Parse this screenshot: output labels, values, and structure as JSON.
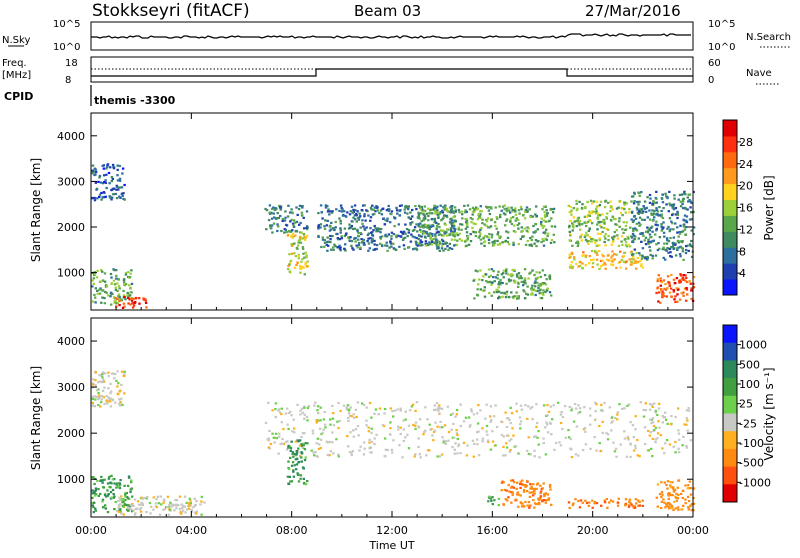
{
  "header": {
    "station": "Stokkseyri (fitACF)",
    "beam": "Beam 03",
    "date": "27/Mar/2016"
  },
  "strip_panels": {
    "nsky": {
      "left_label": "N.Sky",
      "left_ticks": [
        "10^5",
        "10^0"
      ],
      "right_ticks": [
        "10^5",
        "10^0"
      ],
      "right_label": "N.Search"
    },
    "freq": {
      "left_label_1": "Freq.",
      "left_label_2": "[MHz]",
      "left_ticks": [
        "18",
        "8"
      ],
      "right_ticks": [
        "60",
        "0"
      ],
      "right_label": "Nave"
    },
    "cpid": {
      "label": "CPID",
      "program": "themis -3300"
    }
  },
  "chart_data": [
    {
      "type": "heatmap",
      "title": "",
      "xlabel": "",
      "ylabel": "Slant Range [km]",
      "x_range_hours": [
        0,
        24
      ],
      "ylim_km": [
        180,
        4500
      ],
      "x_ticks": [
        "00:00",
        "04:00",
        "08:00",
        "12:00",
        "16:00",
        "20:00",
        "00:00"
      ],
      "y_ticks": [
        1000,
        2000,
        3000,
        4000
      ],
      "colorbar": {
        "label": "Power [dB]",
        "ticks": [
          "4",
          "8",
          "12",
          "16",
          "20",
          "24",
          "28"
        ],
        "colors": [
          "#0a14ff",
          "#1f3fb0",
          "#2c6e9e",
          "#3f8a5e",
          "#5aa64b",
          "#9bd03a",
          "#ffd21f",
          "#ff9a1f",
          "#ff6a10",
          "#ff3010",
          "#e00000"
        ]
      },
      "echo_regions": [
        {
          "t0": 0.0,
          "t1": 1.6,
          "r0": 300,
          "r1": 1100,
          "level": 12
        },
        {
          "t0": 0.9,
          "t1": 2.2,
          "r0": 250,
          "r1": 520,
          "level": 26
        },
        {
          "t0": 0.0,
          "t1": 1.3,
          "r0": 2600,
          "r1": 3400,
          "level": 6
        },
        {
          "t0": 6.9,
          "t1": 8.6,
          "r0": 1900,
          "r1": 2500,
          "level": 9
        },
        {
          "t0": 7.8,
          "t1": 8.6,
          "r0": 900,
          "r1": 1900,
          "level": 16
        },
        {
          "t0": 9.0,
          "t1": 14.5,
          "r0": 1500,
          "r1": 2500,
          "level": 8
        },
        {
          "t0": 13.0,
          "t1": 18.5,
          "r0": 1600,
          "r1": 2500,
          "level": 12
        },
        {
          "t0": 15.2,
          "t1": 18.3,
          "r0": 450,
          "r1": 1100,
          "level": 12
        },
        {
          "t0": 19.0,
          "t1": 21.5,
          "r0": 1600,
          "r1": 2600,
          "level": 14
        },
        {
          "t0": 19.0,
          "t1": 22.0,
          "r0": 1100,
          "r1": 1500,
          "level": 18
        },
        {
          "t0": 21.5,
          "t1": 24.0,
          "r0": 1300,
          "r1": 2800,
          "level": 9
        },
        {
          "t0": 22.5,
          "t1": 24.0,
          "r0": 350,
          "r1": 1000,
          "level": 24
        }
      ]
    },
    {
      "type": "heatmap",
      "title": "",
      "xlabel": "Time UT",
      "ylabel": "Slant Range [km]",
      "x_range_hours": [
        0,
        24
      ],
      "ylim_km": [
        180,
        4500
      ],
      "x_ticks": [
        "00:00",
        "04:00",
        "08:00",
        "12:00",
        "16:00",
        "20:00",
        "00:00"
      ],
      "y_ticks": [
        1000,
        2000,
        3000,
        4000
      ],
      "colorbar": {
        "label": "Velocity [m s⁻¹]",
        "ticks": [
          "1000",
          "500",
          "100",
          "25",
          "-25",
          "-100",
          "-500",
          "-1000"
        ],
        "colors": [
          "#0a14ff",
          "#1f4fb0",
          "#2c8a5a",
          "#40a040",
          "#6cd04a",
          "#c8c8c4",
          "#ffb020",
          "#ff8a10",
          "#ff5010",
          "#e00000"
        ]
      },
      "echo_regions": [
        {
          "t0": 0.0,
          "t1": 1.6,
          "r0": 300,
          "r1": 1100,
          "velocity": 120
        },
        {
          "t0": 1.0,
          "t1": 4.5,
          "r0": 250,
          "r1": 650,
          "velocity": 0
        },
        {
          "t0": 0.0,
          "t1": 1.3,
          "r0": 2600,
          "r1": 3400,
          "velocity": 0
        },
        {
          "t0": 6.9,
          "t1": 23.9,
          "r0": 1500,
          "r1": 2700,
          "velocity": 0
        },
        {
          "t0": 7.8,
          "t1": 8.6,
          "r0": 900,
          "r1": 1900,
          "velocity": 150
        },
        {
          "t0": 15.7,
          "t1": 16.3,
          "r0": 450,
          "r1": 650,
          "velocity": 110
        },
        {
          "t0": 16.3,
          "t1": 18.3,
          "r0": 400,
          "r1": 1000,
          "velocity": -300
        },
        {
          "t0": 19.0,
          "t1": 22.0,
          "r0": 400,
          "r1": 600,
          "velocity": -300
        },
        {
          "t0": 22.5,
          "t1": 24.0,
          "r0": 350,
          "r1": 1000,
          "velocity": -200
        }
      ]
    }
  ]
}
